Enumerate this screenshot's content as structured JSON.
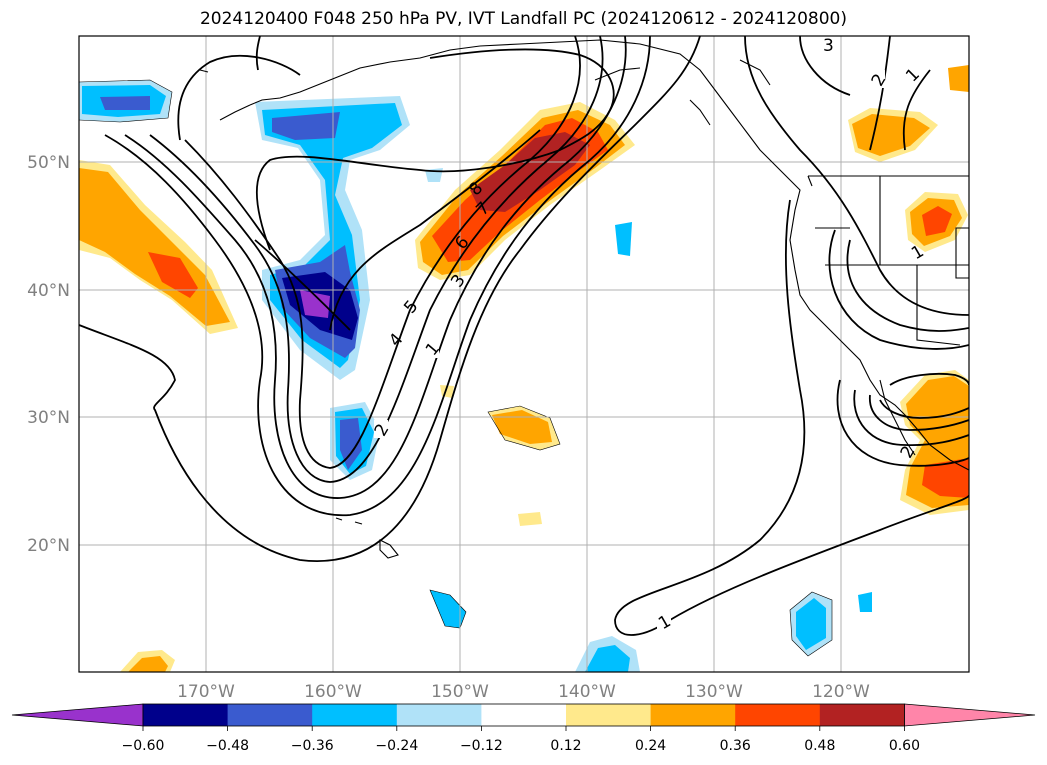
{
  "title": "2024120400 F048 250 hPa PV, IVT Landfall PC (2024120612 - 2024120800)",
  "lon_ticks": [
    "170°W",
    "160°W",
    "150°W",
    "140°W",
    "130°W",
    "120°W"
  ],
  "lat_ticks": [
    "50°N",
    "40°N",
    "30°N",
    "20°N"
  ],
  "colorbar": {
    "tick_labels": [
      "−0.60",
      "−0.48",
      "−0.36",
      "−0.24",
      "−0.12",
      "0.12",
      "0.24",
      "0.36",
      "0.48",
      "0.60"
    ],
    "colors": [
      "#9932cc",
      "#00008b",
      "#3a5bcf",
      "#00bfff",
      "#b0e2f8",
      "#ffffff",
      "#ffe98c",
      "#ffa500",
      "#ff4500",
      "#b22222",
      "#ff85a9"
    ]
  },
  "contour_labels": [
    "1",
    "2",
    "3",
    "4",
    "5",
    "6",
    "7",
    "8",
    "1",
    "2",
    "3",
    "1",
    "1",
    "2"
  ]
}
